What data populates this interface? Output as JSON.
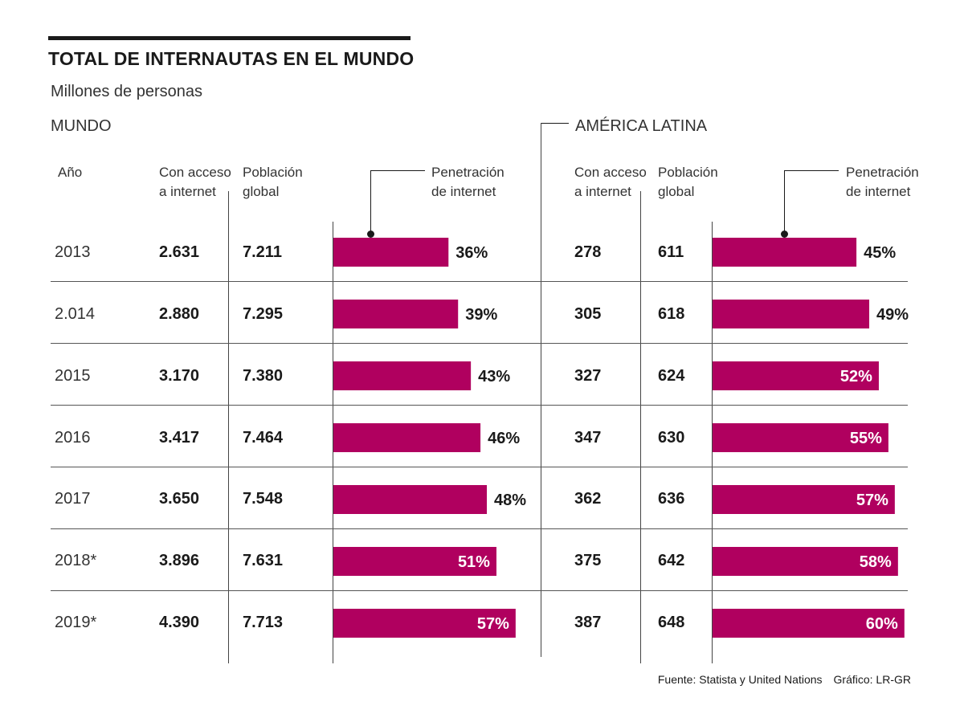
{
  "title": "TOTAL DE INTERNAUTAS EN EL MUNDO",
  "subtitle": "Millones de personas",
  "sections": {
    "world": "MUNDO",
    "latam": "AMÉRICA LATINA"
  },
  "headers": {
    "year": "Año",
    "access_1": "Con acceso",
    "access_2": "a internet",
    "population_1": "Población",
    "population_2": "global",
    "penetration_1": "Penetración",
    "penetration_2": "de internet"
  },
  "source": "Fuente: Statista y United Nations",
  "credit": "Gráfico: LR-GR",
  "colors": {
    "bar": "#b0005f",
    "text": "#1a1a1a",
    "label_inside": "#ffffff"
  },
  "chart_data": [
    {
      "type": "bar",
      "title": "MUNDO",
      "categories": [
        "2013",
        "2.014",
        "2015",
        "2016",
        "2017",
        "2018*",
        "2019*"
      ],
      "access": [
        "2.631",
        "2.880",
        "3.170",
        "3.417",
        "3.650",
        "3.896",
        "4.390"
      ],
      "population": [
        "7.211",
        "7.295",
        "7.380",
        "7.464",
        "7.548",
        "7.631",
        "7.713"
      ],
      "values": [
        36,
        39,
        43,
        46,
        48,
        51,
        57
      ],
      "labels": [
        "36%",
        "39%",
        "43%",
        "46%",
        "48%",
        "51%",
        "57%"
      ],
      "ylabel": "Penetración de internet",
      "ylim": [
        0,
        100
      ]
    },
    {
      "type": "bar",
      "title": "AMÉRICA LATINA",
      "categories": [
        "2013",
        "2.014",
        "2015",
        "2016",
        "2017",
        "2018*",
        "2019*"
      ],
      "access": [
        "278",
        "305",
        "327",
        "347",
        "362",
        "375",
        "387"
      ],
      "population": [
        "611",
        "618",
        "624",
        "630",
        "636",
        "642",
        "648"
      ],
      "values": [
        45,
        49,
        52,
        55,
        57,
        58,
        60
      ],
      "labels": [
        "45%",
        "49%",
        "52%",
        "55%",
        "57%",
        "58%",
        "60%"
      ],
      "ylabel": "Penetración de internet",
      "ylim": [
        0,
        100
      ]
    }
  ]
}
